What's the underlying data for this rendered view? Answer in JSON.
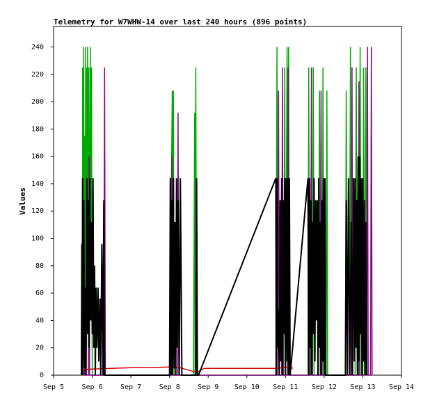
{
  "chart_data": {
    "type": "line",
    "title": "Telemetry for W7WHW-14 over last 240 hours (896 points)",
    "xlabel": "",
    "ylabel": "Values",
    "x_ticks": [
      "Sep 5",
      "Sep 6",
      "Sep 7",
      "Sep 8",
      "Sep 9",
      "Sep 10",
      "Sep 11",
      "Sep 12",
      "Sep 13",
      "Sep 14"
    ],
    "xlim": [
      "Sep 5",
      "Sep 14"
    ],
    "ylim": [
      0,
      255
    ],
    "y_ticks": [
      0,
      20,
      40,
      60,
      80,
      100,
      120,
      140,
      160,
      180,
      200,
      220,
      240
    ],
    "grid": false,
    "legend": "none",
    "colors": {
      "green": "#00aa00",
      "purple": "#880088",
      "black": "#000000",
      "red": "#dd0000"
    },
    "series": [
      {
        "color": "green",
        "points": [
          [
            5.75,
            0
          ],
          [
            5.75,
            225
          ],
          [
            5.77,
            0
          ],
          [
            5.78,
            240
          ],
          [
            5.8,
            10
          ],
          [
            5.81,
            175
          ],
          [
            5.82,
            0
          ],
          [
            5.83,
            240
          ],
          [
            5.85,
            20
          ],
          [
            5.86,
            225
          ],
          [
            5.87,
            30
          ],
          [
            5.88,
            240
          ],
          [
            5.9,
            50
          ],
          [
            5.91,
            225
          ],
          [
            5.92,
            60
          ],
          [
            5.93,
            112
          ],
          [
            5.95,
            240
          ],
          [
            5.97,
            40
          ],
          [
            5.98,
            225
          ],
          [
            6.0,
            0
          ],
          [
            8.0,
            0
          ],
          [
            8.07,
            208
          ],
          [
            8.08,
            0
          ],
          [
            8.1,
            208
          ],
          [
            8.12,
            0
          ],
          [
            8.2,
            0
          ],
          [
            8.62,
            0
          ],
          [
            8.65,
            192
          ],
          [
            8.66,
            0
          ],
          [
            8.68,
            225
          ],
          [
            8.7,
            0
          ],
          [
            10.75,
            0
          ],
          [
            10.78,
            240
          ],
          [
            10.8,
            0
          ],
          [
            10.95,
            0
          ],
          [
            10.98,
            225
          ],
          [
            11.0,
            0
          ],
          [
            11.04,
            240
          ],
          [
            11.06,
            0
          ],
          [
            11.08,
            240
          ],
          [
            11.1,
            0
          ],
          [
            11.58,
            0
          ],
          [
            11.6,
            225
          ],
          [
            11.62,
            0
          ],
          [
            11.7,
            0
          ],
          [
            11.72,
            225
          ],
          [
            11.74,
            0
          ],
          [
            11.85,
            0
          ],
          [
            11.88,
            208
          ],
          [
            11.9,
            0
          ],
          [
            11.95,
            0
          ],
          [
            11.97,
            225
          ],
          [
            11.99,
            0
          ],
          [
            12.05,
            0
          ],
          [
            12.07,
            208
          ],
          [
            12.09,
            0
          ],
          [
            12.55,
            0
          ],
          [
            12.57,
            208
          ],
          [
            12.6,
            0
          ],
          [
            12.65,
            0
          ],
          [
            12.68,
            240
          ],
          [
            12.7,
            0
          ],
          [
            12.8,
            0
          ],
          [
            12.83,
            225
          ],
          [
            12.86,
            0
          ],
          [
            12.9,
            0
          ],
          [
            12.93,
            240
          ],
          [
            12.96,
            0
          ],
          [
            13.0,
            0
          ],
          [
            13.02,
            225
          ],
          [
            13.04,
            0
          ],
          [
            13.08,
            225
          ],
          [
            13.1,
            0
          ]
        ]
      },
      {
        "color": "purple",
        "points": [
          [
            5.78,
            0
          ],
          [
            5.79,
            128
          ],
          [
            5.8,
            0
          ],
          [
            5.9,
            0
          ],
          [
            5.92,
            160
          ],
          [
            5.93,
            0
          ],
          [
            6.3,
            0
          ],
          [
            6.32,
            225
          ],
          [
            6.34,
            0
          ],
          [
            8.05,
            0
          ],
          [
            8.06,
            160
          ],
          [
            8.07,
            0
          ],
          [
            8.2,
            0
          ],
          [
            8.22,
            192
          ],
          [
            8.24,
            0
          ],
          [
            10.8,
            0
          ],
          [
            10.82,
            208
          ],
          [
            10.84,
            0
          ],
          [
            10.9,
            0
          ],
          [
            10.92,
            225
          ],
          [
            10.94,
            0
          ],
          [
            11.05,
            0
          ],
          [
            11.07,
            225
          ],
          [
            11.09,
            0
          ],
          [
            11.65,
            0
          ],
          [
            11.67,
            225
          ],
          [
            11.69,
            0
          ],
          [
            11.9,
            0
          ],
          [
            11.92,
            208
          ],
          [
            11.94,
            0
          ],
          [
            12.7,
            0
          ],
          [
            12.72,
            225
          ],
          [
            12.74,
            0
          ],
          [
            12.88,
            0
          ],
          [
            12.9,
            215
          ],
          [
            12.92,
            0
          ],
          [
            13.1,
            0
          ],
          [
            13.12,
            240
          ],
          [
            13.14,
            0
          ],
          [
            13.2,
            0
          ],
          [
            13.22,
            240
          ],
          [
            13.24,
            0
          ]
        ]
      },
      {
        "color": "red",
        "points": [
          [
            5.75,
            4
          ],
          [
            6.0,
            4.5
          ],
          [
            6.5,
            5
          ],
          [
            7.0,
            5.5
          ],
          [
            7.5,
            5.5
          ],
          [
            8.0,
            6
          ],
          [
            8.1,
            6
          ],
          [
            8.2,
            6
          ],
          [
            8.7,
            2
          ],
          [
            8.9,
            5
          ],
          [
            9.5,
            5
          ],
          [
            10.0,
            5
          ],
          [
            10.5,
            5
          ],
          [
            10.75,
            5
          ],
          [
            11.1,
            6
          ],
          [
            11.2,
            5
          ]
        ]
      },
      {
        "color": "black",
        "points": [
          [
            5.72,
            0
          ],
          [
            5.73,
            96
          ],
          [
            5.74,
            0
          ],
          [
            5.75,
            144
          ],
          [
            5.76,
            10
          ],
          [
            5.78,
            128
          ],
          [
            5.8,
            5
          ],
          [
            5.82,
            64
          ],
          [
            5.84,
            0
          ],
          [
            5.86,
            144
          ],
          [
            5.88,
            30
          ],
          [
            5.9,
            128
          ],
          [
            5.92,
            20
          ],
          [
            5.94,
            144
          ],
          [
            5.96,
            40
          ],
          [
            5.98,
            112
          ],
          [
            6.0,
            30
          ],
          [
            6.02,
            144
          ],
          [
            6.04,
            20
          ],
          [
            6.06,
            80
          ],
          [
            6.08,
            0
          ],
          [
            6.1,
            64
          ],
          [
            6.12,
            20
          ],
          [
            6.15,
            64
          ],
          [
            6.17,
            10
          ],
          [
            6.2,
            56
          ],
          [
            6.22,
            0
          ],
          [
            6.25,
            96
          ],
          [
            6.28,
            0
          ],
          [
            6.3,
            128
          ],
          [
            6.32,
            0
          ],
          [
            8.0,
            0
          ],
          [
            8.02,
            144
          ],
          [
            8.04,
            0
          ],
          [
            8.06,
            128
          ],
          [
            8.08,
            0
          ],
          [
            8.1,
            144
          ],
          [
            8.12,
            5
          ],
          [
            8.14,
            112
          ],
          [
            8.16,
            0
          ],
          [
            8.18,
            144
          ],
          [
            8.2,
            20
          ],
          [
            8.22,
            128
          ],
          [
            8.25,
            0
          ],
          [
            8.28,
            144
          ],
          [
            8.32,
            0
          ],
          [
            8.68,
            0
          ],
          [
            8.7,
            144
          ],
          [
            8.72,
            0
          ],
          [
            8.75,
            0
          ],
          [
            10.75,
            144
          ],
          [
            10.76,
            0
          ],
          [
            10.78,
            144
          ],
          [
            10.8,
            20
          ],
          [
            10.82,
            48
          ],
          [
            10.84,
            0
          ],
          [
            10.86,
            128
          ],
          [
            10.88,
            10
          ],
          [
            10.9,
            144
          ],
          [
            10.92,
            0
          ],
          [
            10.94,
            128
          ],
          [
            10.96,
            30
          ],
          [
            10.98,
            144
          ],
          [
            11.0,
            0
          ],
          [
            11.02,
            144
          ],
          [
            11.04,
            10
          ],
          [
            11.06,
            144
          ],
          [
            11.08,
            0
          ],
          [
            11.1,
            144
          ],
          [
            11.12,
            0
          ],
          [
            11.58,
            144
          ],
          [
            11.6,
            0
          ],
          [
            11.62,
            144
          ],
          [
            11.64,
            20
          ],
          [
            11.66,
            128
          ],
          [
            11.68,
            0
          ],
          [
            11.7,
            112
          ],
          [
            11.72,
            30
          ],
          [
            11.74,
            144
          ],
          [
            11.76,
            10
          ],
          [
            11.78,
            128
          ],
          [
            11.8,
            40
          ],
          [
            11.82,
            128
          ],
          [
            11.84,
            0
          ],
          [
            11.86,
            144
          ],
          [
            11.88,
            20
          ],
          [
            11.9,
            112
          ],
          [
            11.92,
            0
          ],
          [
            11.94,
            128
          ],
          [
            11.96,
            10
          ],
          [
            11.98,
            144
          ],
          [
            12.0,
            0
          ],
          [
            12.02,
            144
          ],
          [
            12.04,
            0
          ],
          [
            12.55,
            0
          ],
          [
            12.57,
            128
          ],
          [
            12.6,
            0
          ],
          [
            12.63,
            144
          ],
          [
            12.66,
            0
          ],
          [
            12.7,
            112
          ],
          [
            12.73,
            0
          ],
          [
            12.76,
            144
          ],
          [
            12.78,
            10
          ],
          [
            12.8,
            144
          ],
          [
            12.82,
            20
          ],
          [
            12.84,
            128
          ],
          [
            12.86,
            0
          ],
          [
            12.88,
            160
          ],
          [
            12.9,
            10
          ],
          [
            12.92,
            160
          ],
          [
            12.94,
            30
          ],
          [
            12.96,
            144
          ],
          [
            12.98,
            0
          ],
          [
            13.0,
            144
          ],
          [
            13.02,
            10
          ],
          [
            13.04,
            128
          ],
          [
            13.06,
            0
          ],
          [
            13.08,
            112
          ],
          [
            13.1,
            0
          ]
        ]
      }
    ]
  }
}
